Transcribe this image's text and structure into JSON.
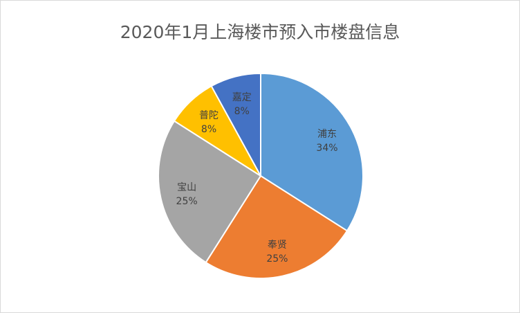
{
  "chart_data": {
    "type": "pie",
    "title": "2020年1月上海楼市预入市楼盘信息",
    "categories": [
      "浦东",
      "奉贤",
      "宝山",
      "普陀",
      "嘉定"
    ],
    "values": [
      34,
      25,
      25,
      8,
      8
    ],
    "data_labels": [
      "34%",
      "25%",
      "25%",
      "8%",
      "8%"
    ],
    "colors": [
      "#5B9BD5",
      "#ED7D31",
      "#A5A5A5",
      "#FFC000",
      "#4472C4"
    ],
    "start_angle": "top, clockwise",
    "legend": "none"
  }
}
